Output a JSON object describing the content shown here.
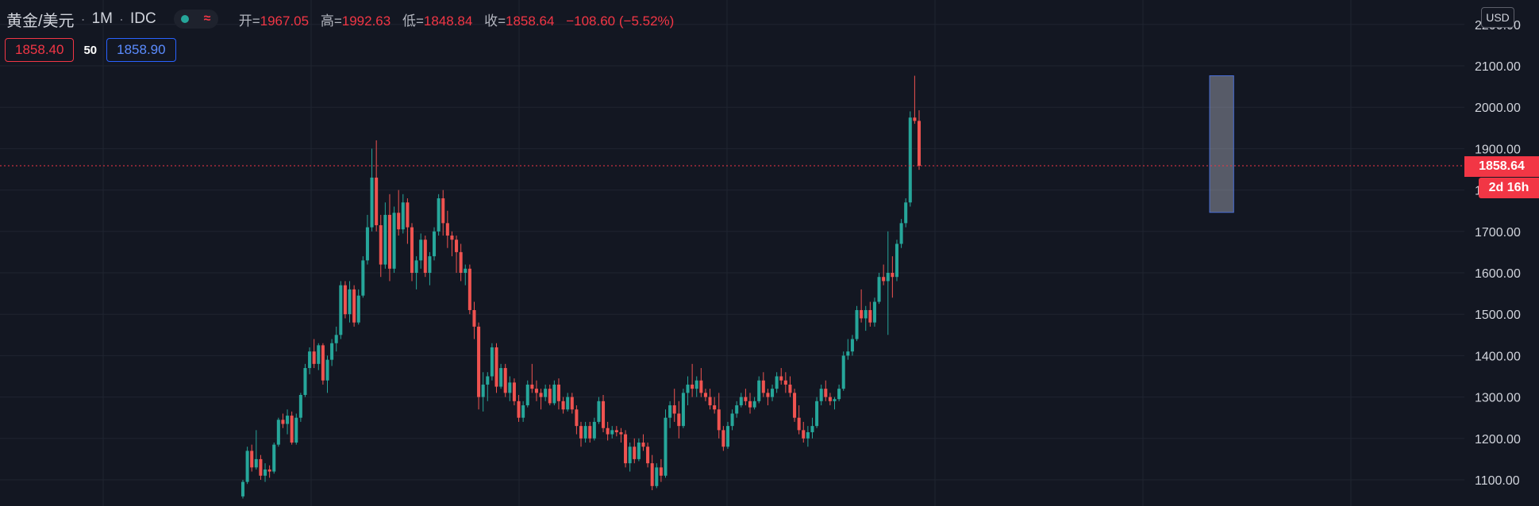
{
  "header": {
    "symbol": "黄金/美元",
    "interval": "1M",
    "source": "IDC",
    "ohlc": [
      {
        "label": "开=",
        "value": "1967.05"
      },
      {
        "label": "高=",
        "value": "1992.63"
      },
      {
        "label": "低=",
        "value": "1848.84"
      },
      {
        "label": "收=",
        "value": "1858.64"
      },
      {
        "label": "",
        "value": "−108.60 (−5.52%)"
      }
    ]
  },
  "quote": {
    "bid": "1858.40",
    "spread": "50",
    "ask": "1858.90"
  },
  "currency_button": "USD",
  "last_price_label": "1858.64",
  "countdown_label": "2d 16h",
  "colors": {
    "up": "#26a69a",
    "down": "#ef5350",
    "background": "#131722",
    "grid": "#1f2430",
    "accent": "#f23645"
  },
  "chart_data": {
    "type": "candlestick",
    "y_tick_labels": [
      "1100.00",
      "1200.00",
      "1300.00",
      "1400.00",
      "1500.00",
      "1600.00",
      "1700.00",
      "1800.00",
      "1900.00",
      "2000.00",
      "2100.00",
      "2200.00"
    ],
    "ylim": [
      1040,
      2250
    ],
    "last_price": 1858.64,
    "grid": true,
    "highlight_range": {
      "start_index": 218,
      "end_index": 222,
      "low": 1746,
      "high": 2076
    },
    "ohlc": [
      [
        1060,
        1100,
        1055,
        1095
      ],
      [
        1095,
        1180,
        1090,
        1170
      ],
      [
        1170,
        1185,
        1120,
        1130
      ],
      [
        1130,
        1220,
        1125,
        1150
      ],
      [
        1150,
        1160,
        1100,
        1110
      ],
      [
        1110,
        1140,
        1095,
        1125
      ],
      [
        1125,
        1135,
        1105,
        1120
      ],
      [
        1120,
        1190,
        1115,
        1185
      ],
      [
        1185,
        1250,
        1180,
        1245
      ],
      [
        1245,
        1260,
        1225,
        1235
      ],
      [
        1235,
        1270,
        1210,
        1255
      ],
      [
        1255,
        1265,
        1185,
        1190
      ],
      [
        1190,
        1260,
        1185,
        1250
      ],
      [
        1250,
        1310,
        1240,
        1305
      ],
      [
        1305,
        1380,
        1300,
        1370
      ],
      [
        1370,
        1420,
        1355,
        1410
      ],
      [
        1410,
        1440,
        1370,
        1380
      ],
      [
        1380,
        1430,
        1365,
        1425
      ],
      [
        1425,
        1430,
        1330,
        1340
      ],
      [
        1340,
        1400,
        1310,
        1390
      ],
      [
        1390,
        1440,
        1375,
        1430
      ],
      [
        1430,
        1470,
        1410,
        1450
      ],
      [
        1450,
        1580,
        1440,
        1570
      ],
      [
        1570,
        1580,
        1490,
        1500
      ],
      [
        1500,
        1580,
        1480,
        1560
      ],
      [
        1560,
        1570,
        1470,
        1480
      ],
      [
        1480,
        1560,
        1475,
        1545
      ],
      [
        1545,
        1640,
        1540,
        1630
      ],
      [
        1630,
        1740,
        1620,
        1710
      ],
      [
        1710,
        1900,
        1700,
        1830
      ],
      [
        1830,
        1920,
        1700,
        1715
      ],
      [
        1715,
        1740,
        1590,
        1620
      ],
      [
        1620,
        1770,
        1610,
        1740
      ],
      [
        1740,
        1790,
        1580,
        1610
      ],
      [
        1610,
        1760,
        1600,
        1745
      ],
      [
        1745,
        1800,
        1690,
        1705
      ],
      [
        1705,
        1790,
        1695,
        1770
      ],
      [
        1770,
        1780,
        1670,
        1710
      ],
      [
        1710,
        1720,
        1580,
        1600
      ],
      [
        1600,
        1640,
        1560,
        1630
      ],
      [
        1630,
        1695,
        1610,
        1680
      ],
      [
        1680,
        1690,
        1590,
        1600
      ],
      [
        1600,
        1650,
        1570,
        1640
      ],
      [
        1640,
        1710,
        1630,
        1700
      ],
      [
        1700,
        1790,
        1690,
        1780
      ],
      [
        1780,
        1800,
        1690,
        1720
      ],
      [
        1720,
        1750,
        1660,
        1690
      ],
      [
        1690,
        1700,
        1640,
        1680
      ],
      [
        1680,
        1690,
        1600,
        1650
      ],
      [
        1650,
        1670,
        1580,
        1600
      ],
      [
        1600,
        1620,
        1570,
        1610
      ],
      [
        1610,
        1620,
        1500,
        1510
      ],
      [
        1510,
        1530,
        1440,
        1470
      ],
      [
        1470,
        1480,
        1270,
        1300
      ],
      [
        1300,
        1360,
        1265,
        1330
      ],
      [
        1330,
        1360,
        1290,
        1350
      ],
      [
        1350,
        1430,
        1340,
        1420
      ],
      [
        1420,
        1430,
        1310,
        1325
      ],
      [
        1325,
        1380,
        1320,
        1370
      ],
      [
        1370,
        1380,
        1300,
        1310
      ],
      [
        1310,
        1350,
        1290,
        1335
      ],
      [
        1335,
        1345,
        1280,
        1290
      ],
      [
        1290,
        1305,
        1240,
        1250
      ],
      [
        1250,
        1290,
        1240,
        1280
      ],
      [
        1280,
        1340,
        1275,
        1330
      ],
      [
        1330,
        1380,
        1310,
        1320
      ],
      [
        1320,
        1340,
        1290,
        1310
      ],
      [
        1310,
        1320,
        1270,
        1300
      ],
      [
        1300,
        1330,
        1290,
        1320
      ],
      [
        1320,
        1330,
        1280,
        1285
      ],
      [
        1285,
        1340,
        1280,
        1330
      ],
      [
        1330,
        1345,
        1270,
        1290
      ],
      [
        1290,
        1300,
        1260,
        1270
      ],
      [
        1270,
        1310,
        1265,
        1300
      ],
      [
        1300,
        1310,
        1260,
        1270
      ],
      [
        1270,
        1280,
        1210,
        1230
      ],
      [
        1230,
        1240,
        1180,
        1200
      ],
      [
        1200,
        1240,
        1190,
        1230
      ],
      [
        1230,
        1240,
        1190,
        1200
      ],
      [
        1200,
        1250,
        1195,
        1240
      ],
      [
        1240,
        1300,
        1235,
        1290
      ],
      [
        1290,
        1305,
        1215,
        1225
      ],
      [
        1225,
        1240,
        1195,
        1210
      ],
      [
        1210,
        1230,
        1200,
        1220
      ],
      [
        1220,
        1230,
        1205,
        1215
      ],
      [
        1215,
        1225,
        1190,
        1210
      ],
      [
        1210,
        1220,
        1130,
        1140
      ],
      [
        1140,
        1190,
        1120,
        1180
      ],
      [
        1180,
        1200,
        1140,
        1150
      ],
      [
        1150,
        1200,
        1145,
        1190
      ],
      [
        1190,
        1210,
        1170,
        1180
      ],
      [
        1180,
        1190,
        1130,
        1140
      ],
      [
        1140,
        1160,
        1075,
        1085
      ],
      [
        1085,
        1140,
        1080,
        1130
      ],
      [
        1130,
        1150,
        1095,
        1110
      ],
      [
        1110,
        1270,
        1105,
        1250
      ],
      [
        1250,
        1290,
        1225,
        1280
      ],
      [
        1280,
        1320,
        1240,
        1260
      ],
      [
        1260,
        1290,
        1200,
        1230
      ],
      [
        1230,
        1320,
        1225,
        1310
      ],
      [
        1310,
        1350,
        1280,
        1330
      ],
      [
        1330,
        1380,
        1300,
        1320
      ],
      [
        1320,
        1350,
        1300,
        1340
      ],
      [
        1340,
        1370,
        1300,
        1310
      ],
      [
        1310,
        1320,
        1290,
        1300
      ],
      [
        1300,
        1320,
        1270,
        1280
      ],
      [
        1280,
        1300,
        1260,
        1270
      ],
      [
        1270,
        1310,
        1200,
        1220
      ],
      [
        1220,
        1230,
        1170,
        1180
      ],
      [
        1180,
        1240,
        1175,
        1230
      ],
      [
        1230,
        1270,
        1220,
        1260
      ],
      [
        1260,
        1290,
        1250,
        1280
      ],
      [
        1280,
        1310,
        1275,
        1300
      ],
      [
        1300,
        1320,
        1280,
        1290
      ],
      [
        1290,
        1310,
        1260,
        1275
      ],
      [
        1275,
        1300,
        1270,
        1290
      ],
      [
        1290,
        1350,
        1285,
        1340
      ],
      [
        1340,
        1360,
        1300,
        1310
      ],
      [
        1310,
        1320,
        1280,
        1300
      ],
      [
        1300,
        1330,
        1290,
        1320
      ],
      [
        1320,
        1360,
        1310,
        1350
      ],
      [
        1350,
        1370,
        1330,
        1340
      ],
      [
        1340,
        1360,
        1310,
        1330
      ],
      [
        1330,
        1350,
        1300,
        1310
      ],
      [
        1310,
        1320,
        1240,
        1250
      ],
      [
        1250,
        1280,
        1210,
        1220
      ],
      [
        1220,
        1240,
        1190,
        1200
      ],
      [
        1200,
        1230,
        1180,
        1215
      ],
      [
        1215,
        1250,
        1200,
        1230
      ],
      [
        1230,
        1300,
        1225,
        1290
      ],
      [
        1290,
        1330,
        1280,
        1320
      ],
      [
        1320,
        1340,
        1290,
        1300
      ],
      [
        1300,
        1310,
        1280,
        1290
      ],
      [
        1290,
        1300,
        1270,
        1295
      ],
      [
        1295,
        1330,
        1290,
        1320
      ],
      [
        1320,
        1410,
        1315,
        1400
      ],
      [
        1400,
        1440,
        1390,
        1410
      ],
      [
        1410,
        1450,
        1400,
        1440
      ],
      [
        1440,
        1520,
        1435,
        1510
      ],
      [
        1510,
        1560,
        1480,
        1490
      ],
      [
        1490,
        1520,
        1460,
        1510
      ],
      [
        1510,
        1530,
        1470,
        1480
      ],
      [
        1480,
        1540,
        1470,
        1530
      ],
      [
        1530,
        1600,
        1525,
        1590
      ],
      [
        1590,
        1620,
        1570,
        1580
      ],
      [
        1580,
        1700,
        1450,
        1600
      ],
      [
        1600,
        1640,
        1540,
        1590
      ],
      [
        1590,
        1680,
        1580,
        1670
      ],
      [
        1670,
        1730,
        1660,
        1720
      ],
      [
        1720,
        1780,
        1710,
        1770
      ],
      [
        1770,
        1990,
        1760,
        1975
      ],
      [
        1975,
        2076,
        1960,
        1967
      ],
      [
        1967,
        1992.63,
        1848.84,
        1858.64
      ]
    ]
  }
}
